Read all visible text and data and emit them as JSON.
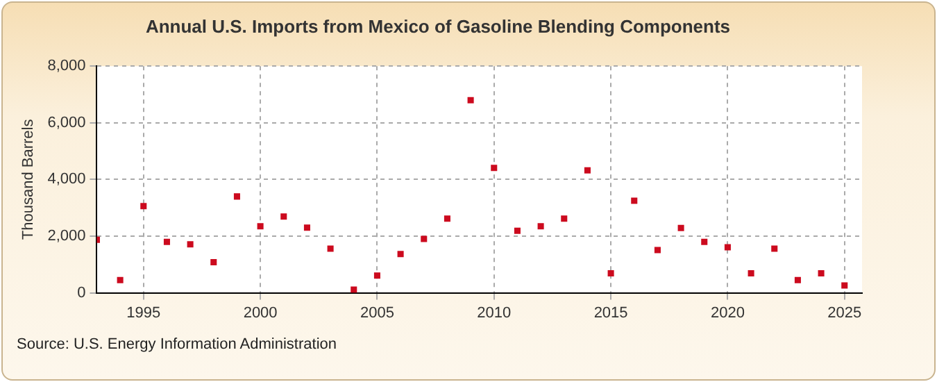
{
  "chart_data": {
    "type": "scatter",
    "title": "Annual U.S. Imports from Mexico of Gasoline Blending Components",
    "ylabel": "Thousand Barrels",
    "x": [
      1993,
      1994,
      1995,
      1996,
      1997,
      1998,
      1999,
      2000,
      2001,
      2002,
      2003,
      2004,
      2005,
      2006,
      2007,
      2008,
      2009,
      2010,
      2011,
      2012,
      2013,
      2014,
      2015,
      2016,
      2017,
      2018,
      2019,
      2020,
      2021,
      2022,
      2023,
      2024,
      2025
    ],
    "series": [
      {
        "color": "#cc0a1e",
        "values": [
          1870,
          450,
          3060,
          1800,
          1710,
          1080,
          3400,
          2350,
          2690,
          2300,
          1560,
          110,
          610,
          1370,
          1900,
          2620,
          6800,
          4410,
          2190,
          2350,
          2620,
          4320,
          690,
          3250,
          1510,
          2290,
          1800,
          1610,
          690,
          1560,
          450,
          690,
          260
        ]
      }
    ],
    "xlim": [
      1993,
      2025.75
    ],
    "xticks": [
      1995,
      2000,
      2005,
      2010,
      2015,
      2020,
      2025
    ],
    "ylim": [
      0,
      8000
    ],
    "yticks": [
      {
        "value": 0,
        "label": "0"
      },
      {
        "value": 2000,
        "label": "2,000"
      },
      {
        "value": 4000,
        "label": "4,000"
      },
      {
        "value": 6000,
        "label": "6,000"
      },
      {
        "value": 8000,
        "label": "8,000"
      }
    ],
    "grid": true,
    "legend": false,
    "marker": "square",
    "annotations": [
      "Source: U.S. Energy Information Administration"
    ]
  }
}
